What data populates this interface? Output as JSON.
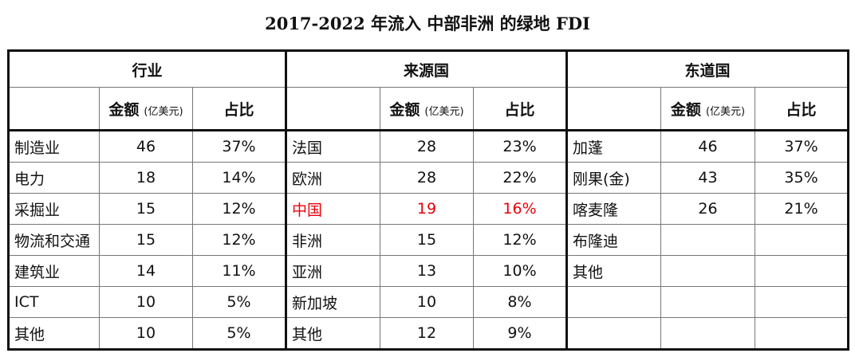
{
  "title": "2017-2022 年流入 中部非洲 的绿地 FDI",
  "groups": [
    {
      "name": "行业",
      "amount_header": "金额",
      "amount_unit": "(亿美元)",
      "share_header": "占比",
      "rows": [
        {
          "label": "制造业",
          "amount": "46",
          "share": "37%"
        },
        {
          "label": "电力",
          "amount": "18",
          "share": "14%"
        },
        {
          "label": "采掘业",
          "amount": "15",
          "share": "12%"
        },
        {
          "label": "物流和交通",
          "amount": "15",
          "share": "12%"
        },
        {
          "label": "建筑业",
          "amount": "14",
          "share": "11%"
        },
        {
          "label": "ICT",
          "amount": "10",
          "share": "5%"
        },
        {
          "label": "其他",
          "amount": "10",
          "share": "5%"
        }
      ]
    },
    {
      "name": "来源国",
      "amount_header": "金额",
      "amount_unit": "(亿美元)",
      "share_header": "占比",
      "rows": [
        {
          "label": "法国",
          "amount": "28",
          "share": "23%"
        },
        {
          "label": "欧洲",
          "amount": "28",
          "share": "22%"
        },
        {
          "label": "中国",
          "amount": "19",
          "share": "16%",
          "highlight": true
        },
        {
          "label": "非洲",
          "amount": "15",
          "share": "12%"
        },
        {
          "label": "亚洲",
          "amount": "13",
          "share": "10%"
        },
        {
          "label": "新加坡",
          "amount": "10",
          "share": "8%"
        },
        {
          "label": "其他",
          "amount": "12",
          "share": "9%"
        }
      ]
    },
    {
      "name": "东道国",
      "amount_header": "金额",
      "amount_unit": "(亿美元)",
      "share_header": "占比",
      "rows": [
        {
          "label": "加蓬",
          "amount": "46",
          "share": "37%"
        },
        {
          "label": "刚果(金)",
          "amount": "43",
          "share": "35%"
        },
        {
          "label": "喀麦隆",
          "amount": "26",
          "share": "21%"
        },
        {
          "label": "布隆迪",
          "amount": "",
          "share": ""
        },
        {
          "label": "其他",
          "amount": "",
          "share": ""
        },
        {
          "label": "",
          "amount": "",
          "share": ""
        },
        {
          "label": "",
          "amount": "",
          "share": ""
        }
      ]
    }
  ],
  "colors": {
    "header_text": "#1f3864",
    "highlight": "#e8000b",
    "border": "#111111"
  }
}
